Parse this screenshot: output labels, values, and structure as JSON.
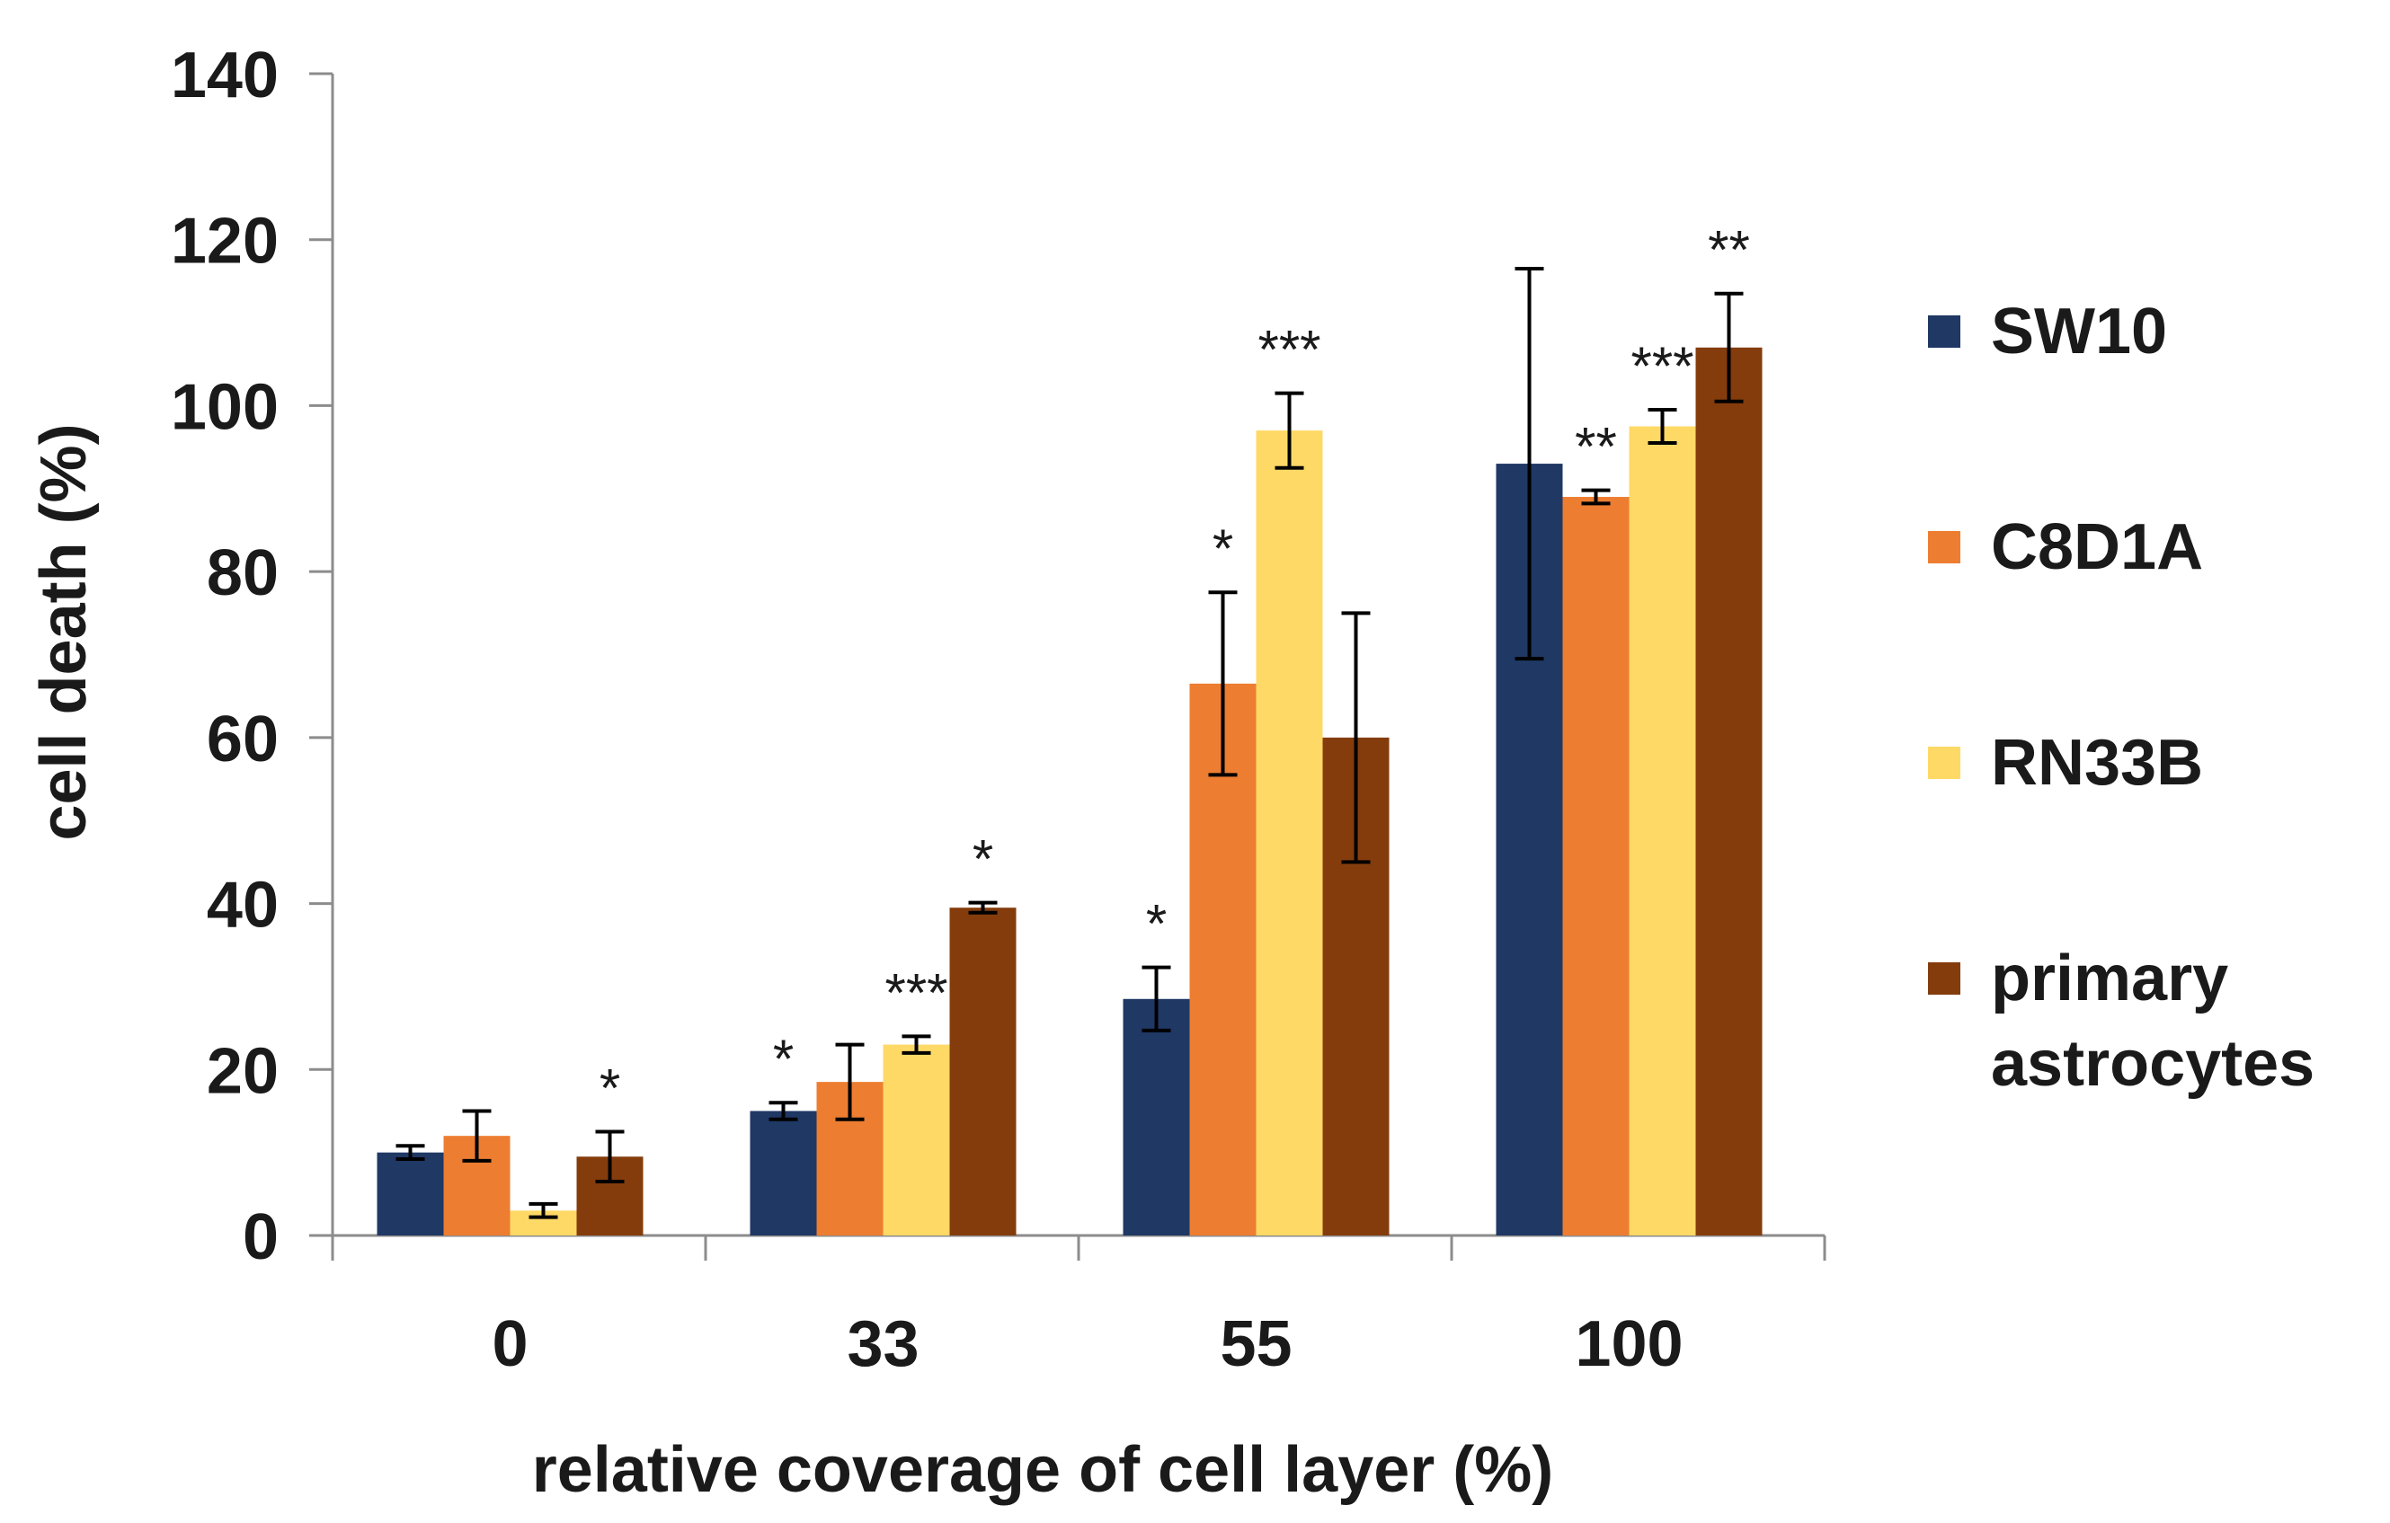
{
  "chart_data": {
    "type": "bar",
    "title": "",
    "xlabel": "relative coverage of cell layer (%)",
    "ylabel": "cell death (%)",
    "ylim": [
      0,
      140
    ],
    "yticks": [
      0,
      20,
      40,
      60,
      80,
      100,
      120,
      140
    ],
    "categories": [
      "0",
      "33",
      "55",
      "100"
    ],
    "grid": false,
    "legend_position": "right",
    "series": [
      {
        "name": "SW10",
        "color": "#1f3864",
        "values": [
          10,
          15,
          28.5,
          93
        ],
        "errors": [
          0.8,
          1.0,
          3.8,
          23.5
        ],
        "significance": [
          "",
          "*",
          "*",
          ""
        ]
      },
      {
        "name": "C8D1A",
        "color": "#ed7d31",
        "values": [
          12,
          18.5,
          66.5,
          89
        ],
        "errors": [
          3.0,
          4.5,
          11.0,
          0.8
        ],
        "significance": [
          "",
          "",
          "*",
          "**"
        ]
      },
      {
        "name": "RN33B",
        "color": "#ffd966",
        "values": [
          3,
          23,
          97,
          97.5
        ],
        "errors": [
          0.8,
          1.0,
          4.5,
          2.0
        ],
        "significance": [
          "",
          "***",
          "***",
          "***"
        ]
      },
      {
        "name": "primary astrocytes",
        "color": "#843c0c",
        "values": [
          9.5,
          39.5,
          60,
          107
        ],
        "errors": [
          3.0,
          0.6,
          15.0,
          6.5
        ],
        "significance": [
          "*",
          "*",
          "",
          "**"
        ]
      }
    ]
  },
  "legend": [
    {
      "lines": [
        "SW10"
      ]
    },
    {
      "lines": [
        "C8D1A"
      ]
    },
    {
      "lines": [
        "RN33B"
      ]
    },
    {
      "lines": [
        "primary",
        "astrocytes"
      ]
    }
  ]
}
